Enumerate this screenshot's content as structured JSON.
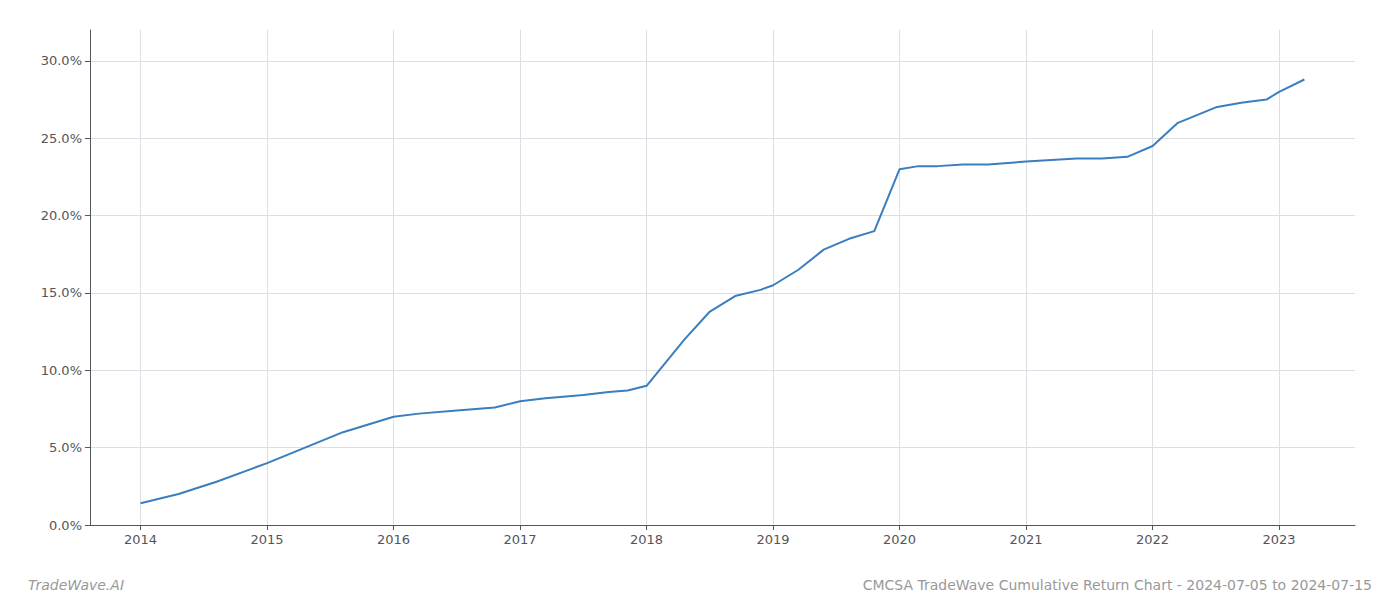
{
  "chart_data": {
    "type": "line",
    "x": [
      2014.0,
      2014.3,
      2014.6,
      2015.0,
      2015.3,
      2015.6,
      2016.0,
      2016.2,
      2016.5,
      2016.8,
      2017.0,
      2017.2,
      2017.5,
      2017.7,
      2017.85,
      2018.0,
      2018.15,
      2018.3,
      2018.5,
      2018.7,
      2018.9,
      2019.0,
      2019.2,
      2019.4,
      2019.6,
      2019.8,
      2020.0,
      2020.15,
      2020.3,
      2020.5,
      2020.7,
      2021.0,
      2021.2,
      2021.4,
      2021.6,
      2021.8,
      2022.0,
      2022.2,
      2022.5,
      2022.7,
      2022.9,
      2023.0,
      2023.2
    ],
    "values": [
      0.014,
      0.02,
      0.028,
      0.04,
      0.05,
      0.06,
      0.07,
      0.072,
      0.074,
      0.076,
      0.08,
      0.082,
      0.084,
      0.086,
      0.087,
      0.09,
      0.105,
      0.12,
      0.138,
      0.148,
      0.152,
      0.155,
      0.165,
      0.178,
      0.185,
      0.19,
      0.23,
      0.232,
      0.232,
      0.233,
      0.233,
      0.235,
      0.236,
      0.237,
      0.237,
      0.238,
      0.245,
      0.26,
      0.27,
      0.273,
      0.275,
      0.28,
      0.288
    ],
    "color": "#3a7ebf",
    "xlim": [
      2013.6,
      2023.6
    ],
    "xticks": [
      2014,
      2015,
      2016,
      2017,
      2018,
      2019,
      2020,
      2021,
      2022,
      2023
    ],
    "ylim": [
      0.0,
      0.32
    ],
    "yticks": [
      {
        "value": 0.0,
        "label": "0.0%"
      },
      {
        "value": 0.05,
        "label": "5.0%"
      },
      {
        "value": 0.1,
        "label": "10.0%"
      },
      {
        "value": 0.15,
        "label": "15.0%"
      },
      {
        "value": 0.2,
        "label": "20.0%"
      },
      {
        "value": 0.25,
        "label": "25.0%"
      },
      {
        "value": 0.3,
        "label": "30.0%"
      }
    ],
    "grid": true,
    "annotations": [
      "TradeWave.AI",
      "CMCSA TradeWave Cumulative Return Chart - 2024-07-05 to 2024-07-15"
    ]
  }
}
